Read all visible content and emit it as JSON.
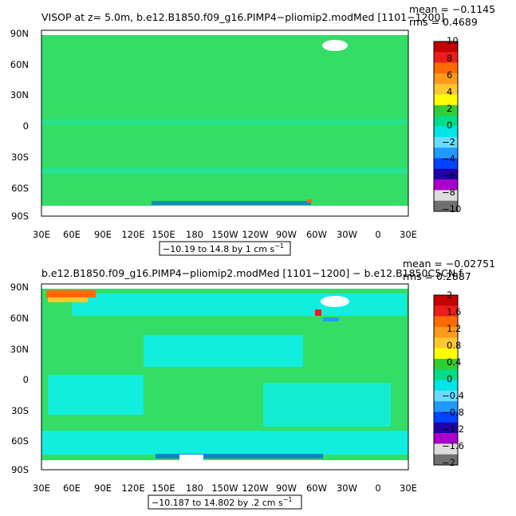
{
  "panels": [
    {
      "title": "VISOP at z=    5.0m, b.e12.B1850.f09_g16.PIMP4−pliomip2.modMed [1101−1200]",
      "stats_mean": "mean = −0.1145",
      "stats_rms": "rms = 0.4689",
      "range_note": "−10.19 to 14.8 by 1 cm s",
      "range_unit_sup": "−1",
      "lat_labels": [
        "90N",
        "60N",
        "30N",
        "0",
        "30S",
        "60S",
        "90S"
      ],
      "lon_labels": [
        "30E",
        "60E",
        "90E",
        "120E",
        "150E",
        "180",
        "150W",
        "120W",
        "90W",
        "60W",
        "30W",
        "0",
        "30E"
      ],
      "colorbar_labels": [
        "10",
        "8",
        "6",
        "4",
        "2",
        "0",
        "−2",
        "−4",
        "−6",
        "−8",
        "−10"
      ]
    },
    {
      "title": "b.e12.B1850.f09_g16.PIMP4−pliomip2.modMed [1101−1200] − b.e12.B1850C5CN.f",
      "stats_mean": "mean = −0.02751",
      "stats_rms": "rms = 0.2887",
      "range_note": "−10.187 to 14.802 by .2 cm s",
      "range_unit_sup": "−1",
      "lat_labels": [
        "90N",
        "60N",
        "30N",
        "0",
        "30S",
        "60S",
        "90S"
      ],
      "lon_labels": [
        "30E",
        "60E",
        "90E",
        "120E",
        "150E",
        "180",
        "150W",
        "120W",
        "90W",
        "60W",
        "30W",
        "0",
        "30E"
      ],
      "colorbar_labels": [
        "2",
        "1.6",
        "1.2",
        "0.8",
        "0.4",
        "0",
        "−0.4",
        "−0.8",
        "−1.2",
        "−1.6",
        "−2"
      ]
    }
  ],
  "colorbar_colors": [
    "#c40000",
    "#ee1c1c",
    "#ff6a00",
    "#ff9a1a",
    "#ffc830",
    "#ffff00",
    "#33cc33",
    "#00dd88",
    "#00e5e5",
    "#66ddff",
    "#2299ff",
    "#0044ff",
    "#2200aa",
    "#aa00cc",
    "#dddddd",
    "#707070"
  ],
  "colors": {
    "ocean_zero": "#33dd66",
    "cyan_band": "#11eedd",
    "light_cyan": "#55ddee",
    "land": "#ffffff",
    "frame": "#000000"
  }
}
